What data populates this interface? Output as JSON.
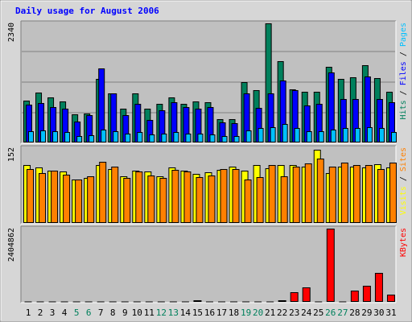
{
  "colors": {
    "frame": "#d6d6d6",
    "panel": "#c0c0c0",
    "title": "#0000ff",
    "grid": "#808080",
    "hits": "#00805c",
    "files": "#0000ff",
    "pages": "#00c0ff",
    "visits": "#ffff00",
    "sites": "#ff8000",
    "kbytes": "#ff0000",
    "weekday_label": "#000000",
    "weekend_label": "#00805c"
  },
  "chart_data": {
    "type": "bar",
    "title": "Daily usage for August 2006",
    "days": [
      "1",
      "2",
      "3",
      "4",
      "5",
      "6",
      "7",
      "8",
      "9",
      "10",
      "11",
      "12",
      "13",
      "14",
      "15",
      "16",
      "17",
      "18",
      "19",
      "20",
      "21",
      "22",
      "23",
      "24",
      "25",
      "26",
      "27",
      "28",
      "29",
      "30",
      "31"
    ],
    "weekend_days": [
      "5",
      "6",
      "12",
      "13",
      "19",
      "20",
      "26",
      "27"
    ],
    "panels": [
      {
        "name": "requests",
        "ymax_label": "2340",
        "ymax": 2340,
        "legend": [
          {
            "key": "pages",
            "text": "Pages"
          },
          {
            "key": "sep",
            "text": " / "
          },
          {
            "key": "files",
            "text": "Files"
          },
          {
            "key": "sep",
            "text": " / "
          },
          {
            "key": "hits",
            "text": "Hits"
          }
        ],
        "series": [
          {
            "key": "hits",
            "values": [
              830,
              980,
              880,
              810,
              560,
              570,
              1250,
              970,
              660,
              960,
              670,
              760,
              890,
              760,
              800,
              790,
              460,
              460,
              1190,
              1020,
              2340,
              1600,
              1040,
              990,
              1000,
              1480,
              1250,
              1280,
              1520,
              1260,
              1000
            ]
          },
          {
            "key": "files",
            "values": [
              750,
              770,
              700,
              660,
              410,
              530,
              1450,
              960,
              540,
              760,
              440,
              640,
              790,
              700,
              660,
              690,
              400,
              380,
              960,
              680,
              960,
              1210,
              1020,
              730,
              760,
              1370,
              860,
              860,
              1290,
              860,
              790
            ]
          },
          {
            "key": "pages",
            "values": [
              220,
              240,
              220,
              200,
              120,
              140,
              260,
              220,
              180,
              200,
              160,
              180,
              200,
              180,
              180,
              160,
              120,
              120,
              240,
              280,
              300,
              360,
              280,
              220,
              220,
              260,
              280,
              280,
              300,
              280,
              200
            ]
          }
        ]
      },
      {
        "name": "sites",
        "ymax_label": "152",
        "ymax": 152,
        "legend": [
          {
            "key": "sites",
            "text": "Sites"
          },
          {
            "key": "sep",
            "text": " / "
          },
          {
            "key": "visits",
            "text": "Visits"
          }
        ],
        "series": [
          {
            "key": "visits",
            "values": [
              118,
              112,
              106,
              104,
              89,
              91,
              118,
              110,
              95,
              106,
              104,
              94,
              113,
              107,
              99,
              103,
              108,
              114,
              107,
              118,
              111,
              118,
              118,
              114,
              149,
              102,
              114,
              114,
              113,
              120,
              113
            ]
          },
          {
            "key": "sites",
            "values": [
              110,
              101,
              106,
              98,
              89,
              95,
              125,
              115,
              92,
              104,
              97,
              91,
              108,
              104,
              93,
              96,
              110,
              109,
              88,
              93,
              117,
              95,
              114,
              121,
              130,
              115,
              123,
              118,
              117,
              110,
              122
            ]
          }
        ]
      },
      {
        "name": "kbytes",
        "ymax_label": "2404862",
        "ymax": 2404862,
        "legend": [
          {
            "key": "kbytes",
            "text": "KBytes"
          }
        ],
        "series": [
          {
            "key": "kbytes",
            "values": [
              0,
              0,
              0,
              0,
              0,
              0,
              0,
              0,
              0,
              0,
              0,
              0,
              0,
              0,
              51000,
              0,
              0,
              0,
              0,
              0,
              0,
              47000,
              320000,
              470000,
              0,
              2404862,
              0,
              380000,
              520000,
              960000,
              230000
            ]
          }
        ]
      }
    ]
  }
}
